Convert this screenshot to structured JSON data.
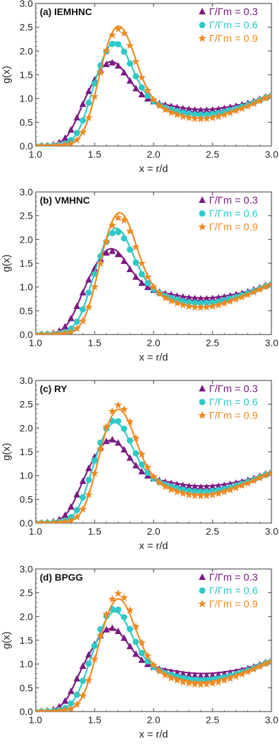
{
  "chart_data": [
    {
      "type": "line",
      "title": "(a) IEMHNC",
      "xlabel": "x = r/d",
      "ylabel": "g(x)",
      "xlim": [
        1.0,
        3.0
      ],
      "ylim": [
        0.0,
        3.0
      ],
      "xticks": [
        "1.0",
        "1.5",
        "2.0",
        "2.5",
        "3.0"
      ],
      "yticks": [
        "0.0",
        "0.5",
        "1.0",
        "1.5",
        "2.0",
        "2.5",
        "3.0"
      ],
      "legend_position": "top-right",
      "series": [
        {
          "name": "Γ/Γm = 0.3",
          "color": "#7b1a83",
          "marker": "triangle",
          "peak_x": 1.64,
          "peak_line": 1.79,
          "peak_sym": 1.77,
          "min_x": 2.42,
          "min_line": 0.77,
          "min_sym": 0.75,
          "onset": 1.34
        },
        {
          "name": "Γ/Γm = 0.6",
          "color": "#2ec9c9",
          "marker": "circle",
          "peak_x": 1.67,
          "peak_line": 2.22,
          "peak_sym": 2.2,
          "min_x": 2.41,
          "min_line": 0.67,
          "min_sym": 0.66,
          "onset": 1.41
        },
        {
          "name": "Γ/Γm = 0.9",
          "color": "#ef8a21",
          "marker": "star",
          "peak_x": 1.7,
          "peak_line": 2.58,
          "peak_sym": 2.52,
          "min_x": 2.4,
          "min_line": 0.59,
          "min_sym": 0.57,
          "onset": 1.46
        }
      ]
    },
    {
      "type": "line",
      "title": "(b) VMHNC",
      "xlabel": "x = r/d",
      "ylabel": "g(x)",
      "xlim": [
        1.0,
        3.0
      ],
      "ylim": [
        0.0,
        3.0
      ],
      "xticks": [
        "1.0",
        "1.5",
        "2.0",
        "2.5",
        "3.0"
      ],
      "yticks": [
        "0.0",
        "0.5",
        "1.0",
        "1.5",
        "2.0",
        "2.5",
        "3.0"
      ],
      "legend_position": "top-right",
      "series": [
        {
          "name": "Γ/Γm = 0.3",
          "color": "#7b1a83",
          "marker": "triangle",
          "peak_x": 1.64,
          "peak_line": 1.82,
          "peak_sym": 1.77,
          "min_x": 2.42,
          "min_line": 0.77,
          "min_sym": 0.75,
          "onset": 1.34
        },
        {
          "name": "Γ/Γm = 0.6",
          "color": "#2ec9c9",
          "marker": "circle",
          "peak_x": 1.68,
          "peak_line": 2.27,
          "peak_sym": 2.2,
          "min_x": 2.41,
          "min_line": 0.66,
          "min_sym": 0.66,
          "onset": 1.41
        },
        {
          "name": "Γ/Γm = 0.9",
          "color": "#ef8a21",
          "marker": "star",
          "peak_x": 1.71,
          "peak_line": 2.62,
          "peak_sym": 2.52,
          "min_x": 2.4,
          "min_line": 0.58,
          "min_sym": 0.57,
          "onset": 1.46
        }
      ]
    },
    {
      "type": "line",
      "title": "(c) RY",
      "xlabel": "x = r/d",
      "ylabel": "g(x)",
      "xlim": [
        1.0,
        3.0
      ],
      "ylim": [
        0.0,
        3.0
      ],
      "xticks": [
        "1.0",
        "1.5",
        "2.0",
        "2.5",
        "3.0"
      ],
      "yticks": [
        "0.0",
        "0.5",
        "1.0",
        "1.5",
        "2.0",
        "2.5",
        "3.0"
      ],
      "legend_position": "top-right",
      "series": [
        {
          "name": "Γ/Γm = 0.3",
          "color": "#7b1a83",
          "marker": "triangle",
          "peak_x": 1.64,
          "peak_line": 1.76,
          "peak_sym": 1.77,
          "min_x": 2.42,
          "min_line": 0.78,
          "min_sym": 0.75,
          "onset": 1.34
        },
        {
          "name": "Γ/Γm = 0.6",
          "color": "#2ec9c9",
          "marker": "circle",
          "peak_x": 1.67,
          "peak_line": 2.15,
          "peak_sym": 2.2,
          "min_x": 2.41,
          "min_line": 0.67,
          "min_sym": 0.66,
          "onset": 1.41
        },
        {
          "name": "Γ/Γm = 0.9",
          "color": "#ef8a21",
          "marker": "star",
          "peak_x": 1.7,
          "peak_line": 2.45,
          "peak_sym": 2.54,
          "min_x": 2.4,
          "min_line": 0.6,
          "min_sym": 0.57,
          "onset": 1.46
        }
      ]
    },
    {
      "type": "line",
      "title": "(d) BPGG",
      "xlabel": "x = r/d",
      "ylabel": "g(x)",
      "xlim": [
        1.0,
        3.0
      ],
      "ylim": [
        0.0,
        3.0
      ],
      "xticks": [
        "1.0",
        "1.5",
        "2.0",
        "2.5",
        "3.0"
      ],
      "yticks": [
        "0.0",
        "0.5",
        "1.0",
        "1.5",
        "2.0",
        "2.5",
        "3.0"
      ],
      "legend_position": "top-right",
      "series": [
        {
          "name": "Γ/Γm = 0.3",
          "color": "#7b1a83",
          "marker": "triangle",
          "peak_x": 1.64,
          "peak_line": 1.76,
          "peak_sym": 1.77,
          "min_x": 2.42,
          "min_line": 0.8,
          "min_sym": 0.75,
          "onset": 1.32
        },
        {
          "name": "Γ/Γm = 0.6",
          "color": "#2ec9c9",
          "marker": "circle",
          "peak_x": 1.67,
          "peak_line": 2.13,
          "peak_sym": 2.2,
          "min_x": 2.41,
          "min_line": 0.7,
          "min_sym": 0.66,
          "onset": 1.39
        },
        {
          "name": "Γ/Γm = 0.9",
          "color": "#ef8a21",
          "marker": "star",
          "peak_x": 1.7,
          "peak_line": 2.42,
          "peak_sym": 2.54,
          "min_x": 2.4,
          "min_line": 0.62,
          "min_sym": 0.57,
          "onset": 1.45
        }
      ]
    }
  ]
}
